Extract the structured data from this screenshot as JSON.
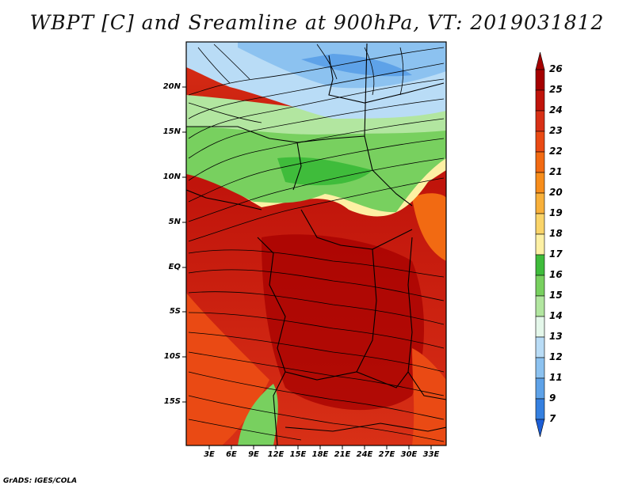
{
  "title": "WBPT [C] and Sreamline at 900hPa, VT: 2019031812",
  "footer": "GrADS: IGES/COLA",
  "axes": {
    "lat_ticks": [
      "20N",
      "15N",
      "10N",
      "5N",
      "EQ",
      "5S",
      "10S",
      "15S"
    ],
    "lon_ticks": [
      "3E",
      "6E",
      "9E",
      "12E",
      "15E",
      "18E",
      "21E",
      "24E",
      "27E",
      "30E",
      "33E"
    ]
  },
  "colorbar": {
    "levels": [
      "26",
      "25",
      "24",
      "23",
      "22",
      "21",
      "20",
      "19",
      "18",
      "17",
      "16",
      "15",
      "14",
      "13",
      "12",
      "11",
      "9",
      "7"
    ],
    "colors": [
      "#a50000",
      "#c0140b",
      "#d83016",
      "#ea4a14",
      "#f26a12",
      "#f78d1b",
      "#f8b03a",
      "#fad469",
      "#fdf0a4",
      "#3fbc3b",
      "#78d05f",
      "#b2e6a0",
      "#e4f7ea",
      "#b9dcf6",
      "#8cc2f0",
      "#5ea2e8",
      "#3580e0",
      "#1c5ed6"
    ]
  },
  "map": {
    "label": "Wet-bulb potential temperature field with streamlines over Central Africa"
  }
}
